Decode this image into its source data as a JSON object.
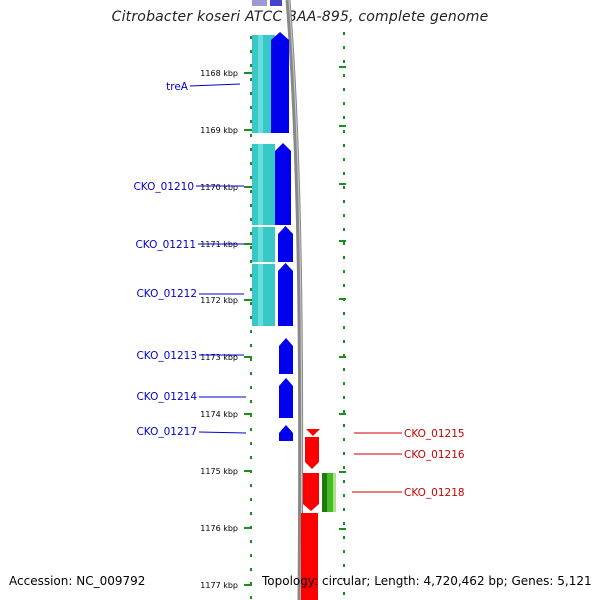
{
  "title": "Citrobacter koseri ATCC BAA-895, complete genome",
  "footer": {
    "accession": "Accession: NC_009792",
    "topology": "Topology: circular; Length: 4,720,462 bp; Genes: 5,121"
  },
  "colors": {
    "ruler_green": "#1e8c1e",
    "gene_blue": "#0000ee",
    "cyan_block": "#38c8c8",
    "gene_red": "#ff0000",
    "green_block": "#44bb22",
    "backbone_grey": "#888888",
    "label_blue": "#0000cc",
    "label_red": "#cc0000"
  },
  "ruler_ticks": [
    "1168 kbp",
    "1169 kbp",
    "1170 kbp",
    "1171 kbp",
    "1172 kbp",
    "1173 kbp",
    "1174 kbp",
    "1175 kbp",
    "1176 kbp",
    "1177 kbp"
  ],
  "left_genes": [
    "treA",
    "CKO_01210",
    "CKO_01211",
    "CKO_01212",
    "CKO_01213",
    "CKO_01214",
    "CKO_01217"
  ],
  "right_genes": [
    "CKO_01215",
    "CKO_01216",
    "CKO_01218"
  ]
}
